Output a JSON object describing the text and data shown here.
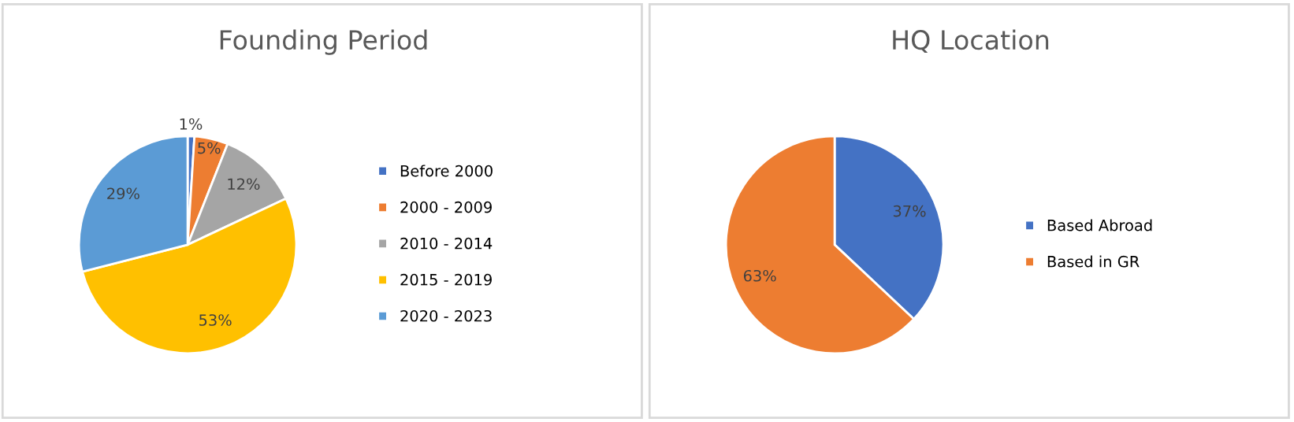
{
  "chart_data": [
    {
      "type": "pie",
      "title": "Founding Period",
      "categories": [
        "Before 2000",
        "2000 - 2009",
        "2010 - 2014",
        "2015 - 2019",
        "2020 - 2023"
      ],
      "values": [
        1,
        5,
        12,
        53,
        29
      ],
      "colors": [
        "#4472c4",
        "#ed7d31",
        "#a5a5a5",
        "#ffc000",
        "#5b9bd5"
      ],
      "value_labels": [
        "1%",
        "5%",
        "12%",
        "53%",
        "29%"
      ],
      "legend": "right"
    },
    {
      "type": "pie",
      "title": "HQ Location",
      "categories": [
        "Based Abroad",
        "Based in GR"
      ],
      "values": [
        37,
        63
      ],
      "colors": [
        "#4472c4",
        "#ed7d31"
      ],
      "value_labels": [
        "37%",
        "63%"
      ],
      "legend": "right"
    }
  ]
}
